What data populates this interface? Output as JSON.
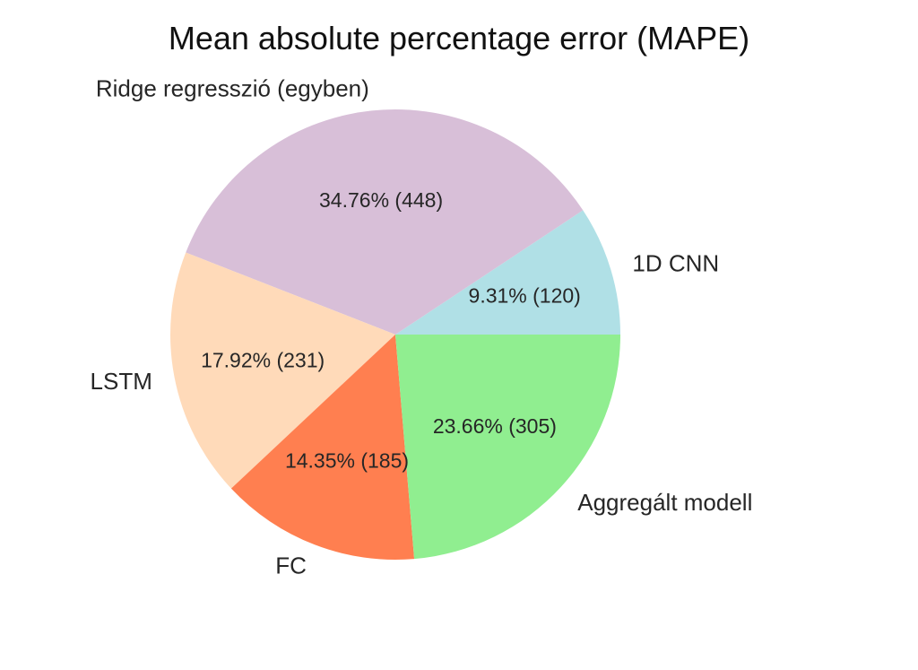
{
  "chart_data": {
    "type": "pie",
    "title": "Mean absolute percentage error (MAPE)",
    "slices": [
      {
        "label": "1D CNN",
        "value": 120,
        "percent_label": "9.31%  (120)",
        "color": "#b0e0e6"
      },
      {
        "label": "Ridge regresszió (egyben)",
        "value": 448,
        "percent_label": "34.76%  (448)",
        "color": "#d8bfd8"
      },
      {
        "label": "LSTM",
        "value": 231,
        "percent_label": "17.92%  (231)",
        "color": "#ffdab9"
      },
      {
        "label": "FC",
        "value": 185,
        "percent_label": "14.35%  (185)",
        "color": "#ff7f50"
      },
      {
        "label": "Aggregált modell",
        "value": 305,
        "percent_label": "23.66%  (305)",
        "color": "#90ee90"
      }
    ],
    "start_angle_deg": 0,
    "direction": "counterclockwise"
  }
}
